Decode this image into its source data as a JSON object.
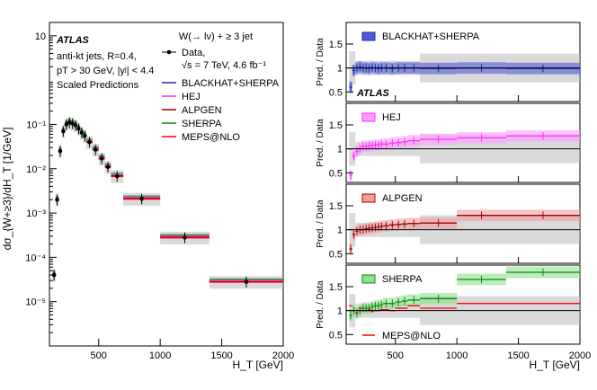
{
  "chart_data": [
    {
      "type": "line",
      "scale": "log",
      "title": "W(→ lν) + ≥ 3 jet",
      "ylabel": "dσ_{W+≥3}/dH_T [1/GeV]",
      "xlabel": "H_T [GeV]",
      "xlim": [
        100,
        2000
      ],
      "ylim": [
        1e-06,
        20
      ],
      "x_ticks": [
        "500",
        "1000",
        "1500",
        "2000"
      ],
      "y_ticks": [
        "10",
        "10⁻¹",
        "10⁻²",
        "10⁻³",
        "10⁻⁴",
        "10⁻⁵"
      ],
      "annotations": [
        "ATLAS",
        "anti-kt jets, R=0.4,",
        "pT > 30 GeV, |yʲ| < 4.4",
        "Scaled Predictions",
        "√s = 7 TeV, 4.6 fb⁻¹"
      ],
      "legend": [
        "Data,",
        "BLACKHAT+SHERPA",
        "HEJ",
        "ALPGEN",
        "SHERPA",
        "MEPS@NLO"
      ],
      "bins": [
        [
          125,
          150
        ],
        [
          150,
          175
        ],
        [
          175,
          200
        ],
        [
          200,
          225
        ],
        [
          225,
          250
        ],
        [
          250,
          275
        ],
        [
          275,
          300
        ],
        [
          300,
          325
        ],
        [
          325,
          350
        ],
        [
          350,
          375
        ],
        [
          375,
          400
        ],
        [
          400,
          450
        ],
        [
          450,
          500
        ],
        [
          500,
          550
        ],
        [
          550,
          600
        ],
        [
          600,
          700
        ],
        [
          700,
          1000
        ],
        [
          1000,
          1400
        ],
        [
          1400,
          2000
        ]
      ],
      "data_values": [
        4e-05,
        0.002,
        0.025,
        0.07,
        0.1,
        0.11,
        0.105,
        0.095,
        0.08,
        0.065,
        0.055,
        0.04,
        0.027,
        0.017,
        0.011,
        0.0068,
        0.0021,
        0.00028,
        2.8e-05
      ],
      "series": [
        {
          "name": "BLACKHAT+SHERPA",
          "color": "#1f2aa8"
        },
        {
          "name": "HEJ",
          "color": "#ff2bff"
        },
        {
          "name": "ALPGEN",
          "color": "#a00000"
        },
        {
          "name": "SHERPA",
          "color": "#0a8a0a"
        },
        {
          "name": "MEPS@NLO",
          "color": "#ff0000"
        }
      ]
    },
    {
      "type": "line",
      "ylabel": "Pred. / Data",
      "xlabel": "H_T [GeV]",
      "xlim": [
        100,
        2000
      ],
      "ylim": [
        0.3,
        1.95
      ],
      "y_ticks": [
        "0.5",
        "1",
        "1.5"
      ],
      "x_ticks": [
        "500",
        "1000",
        "1500",
        "2000"
      ],
      "panels": [
        {
          "label": "BLACKHAT+SHERPA",
          "color": "#1f2aa8",
          "band": "#4f5ad8",
          "ratios": [
            0.6,
            0.95,
            1.0,
            1.02,
            1.0,
            1.0,
            0.99,
            1.01,
            1.0,
            0.99,
            1.0,
            1.0,
            0.99,
            1.0,
            1.0,
            1.0,
            0.99,
            1.0,
            0.99
          ]
        },
        {
          "label": "HEJ",
          "color": "#ff2bff",
          "band": "#ff9cff",
          "ratios": [
            0.45,
            0.85,
            0.95,
            1.0,
            1.05,
            1.05,
            1.06,
            1.07,
            1.08,
            1.08,
            1.1,
            1.1,
            1.12,
            1.13,
            1.15,
            1.17,
            1.2,
            1.23,
            1.27
          ]
        },
        {
          "label": "ALPGEN",
          "color": "#a00000",
          "band": "#f0a0a0",
          "ratios": [
            0.6,
            0.9,
            0.97,
            1.0,
            1.0,
            1.02,
            1.03,
            1.04,
            1.05,
            1.06,
            1.07,
            1.08,
            1.1,
            1.11,
            1.12,
            1.13,
            1.14,
            1.3,
            1.3
          ]
        },
        {
          "label": "SHERPA",
          "color": "#0a8a0a",
          "band": "#8ee08e",
          "label2": "MEPS@NLO",
          "color2": "#ff0000",
          "ratios": [
            0.9,
            1.0,
            0.95,
            1.0,
            1.05,
            1.05,
            1.05,
            1.08,
            1.1,
            1.1,
            1.12,
            1.15,
            1.15,
            1.18,
            1.2,
            1.22,
            1.25,
            1.65,
            1.8
          ],
          "ratios2": [
            1.1,
            1.0,
            0.95,
            1.05,
            1.0,
            1.0,
            1.02,
            0.98,
            1.0,
            1.0,
            1.02,
            1.02,
            1.0,
            1.05,
            1.05,
            1.1,
            1.05,
            1.15,
            1.15
          ]
        }
      ]
    }
  ]
}
